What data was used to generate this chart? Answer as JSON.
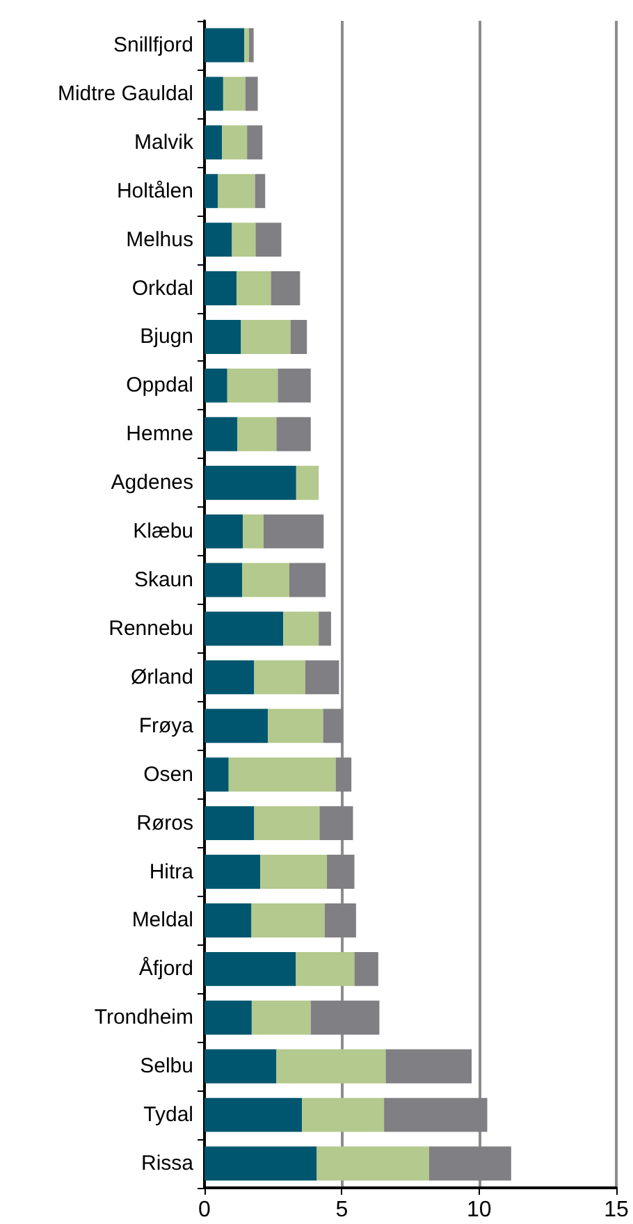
{
  "chart_data": {
    "type": "bar",
    "orientation": "horizontal",
    "stacked": true,
    "categories": [
      "Snillfjord",
      "Midtre Gauldal",
      "Malvik",
      "Holtålen",
      "Melhus",
      "Orkdal",
      "Bjugn",
      "Oppdal",
      "Hemne",
      "Agdenes",
      "Klæbu",
      "Skaun",
      "Rennebu",
      "Ørland",
      "Frøya",
      "Osen",
      "Røros",
      "Hitra",
      "Meldal",
      "Åfjord",
      "Trondheim",
      "Selbu",
      "Tydal",
      "Rissa"
    ],
    "series": [
      {
        "color": "#00566e",
        "values": [
          1.45,
          0.68,
          0.64,
          0.49,
          1.0,
          1.17,
          1.33,
          0.83,
          1.2,
          3.34,
          1.4,
          1.37,
          2.87,
          1.81,
          2.31,
          0.88,
          1.81,
          2.03,
          1.71,
          3.33,
          1.72,
          2.62,
          3.55,
          4.09
        ]
      },
      {
        "color": "#b3c98d",
        "values": [
          0.17,
          0.81,
          0.91,
          1.35,
          0.86,
          1.25,
          1.8,
          1.84,
          1.42,
          0.82,
          0.75,
          1.72,
          1.29,
          1.86,
          2.01,
          3.9,
          2.38,
          2.43,
          2.67,
          2.13,
          2.15,
          3.98,
          2.99,
          4.09
        ]
      },
      {
        "color": "#807f83",
        "values": [
          0.17,
          0.45,
          0.56,
          0.37,
          0.94,
          1.06,
          0.6,
          1.2,
          1.25,
          0,
          2.19,
          1.32,
          0.45,
          1.23,
          0.71,
          0.57,
          1.22,
          1.0,
          1.14,
          0.87,
          2.5,
          3.13,
          3.76,
          2.99
        ]
      }
    ],
    "xlim": [
      0,
      15
    ],
    "xticks": [
      0,
      5,
      10,
      15
    ],
    "grid": "x"
  }
}
